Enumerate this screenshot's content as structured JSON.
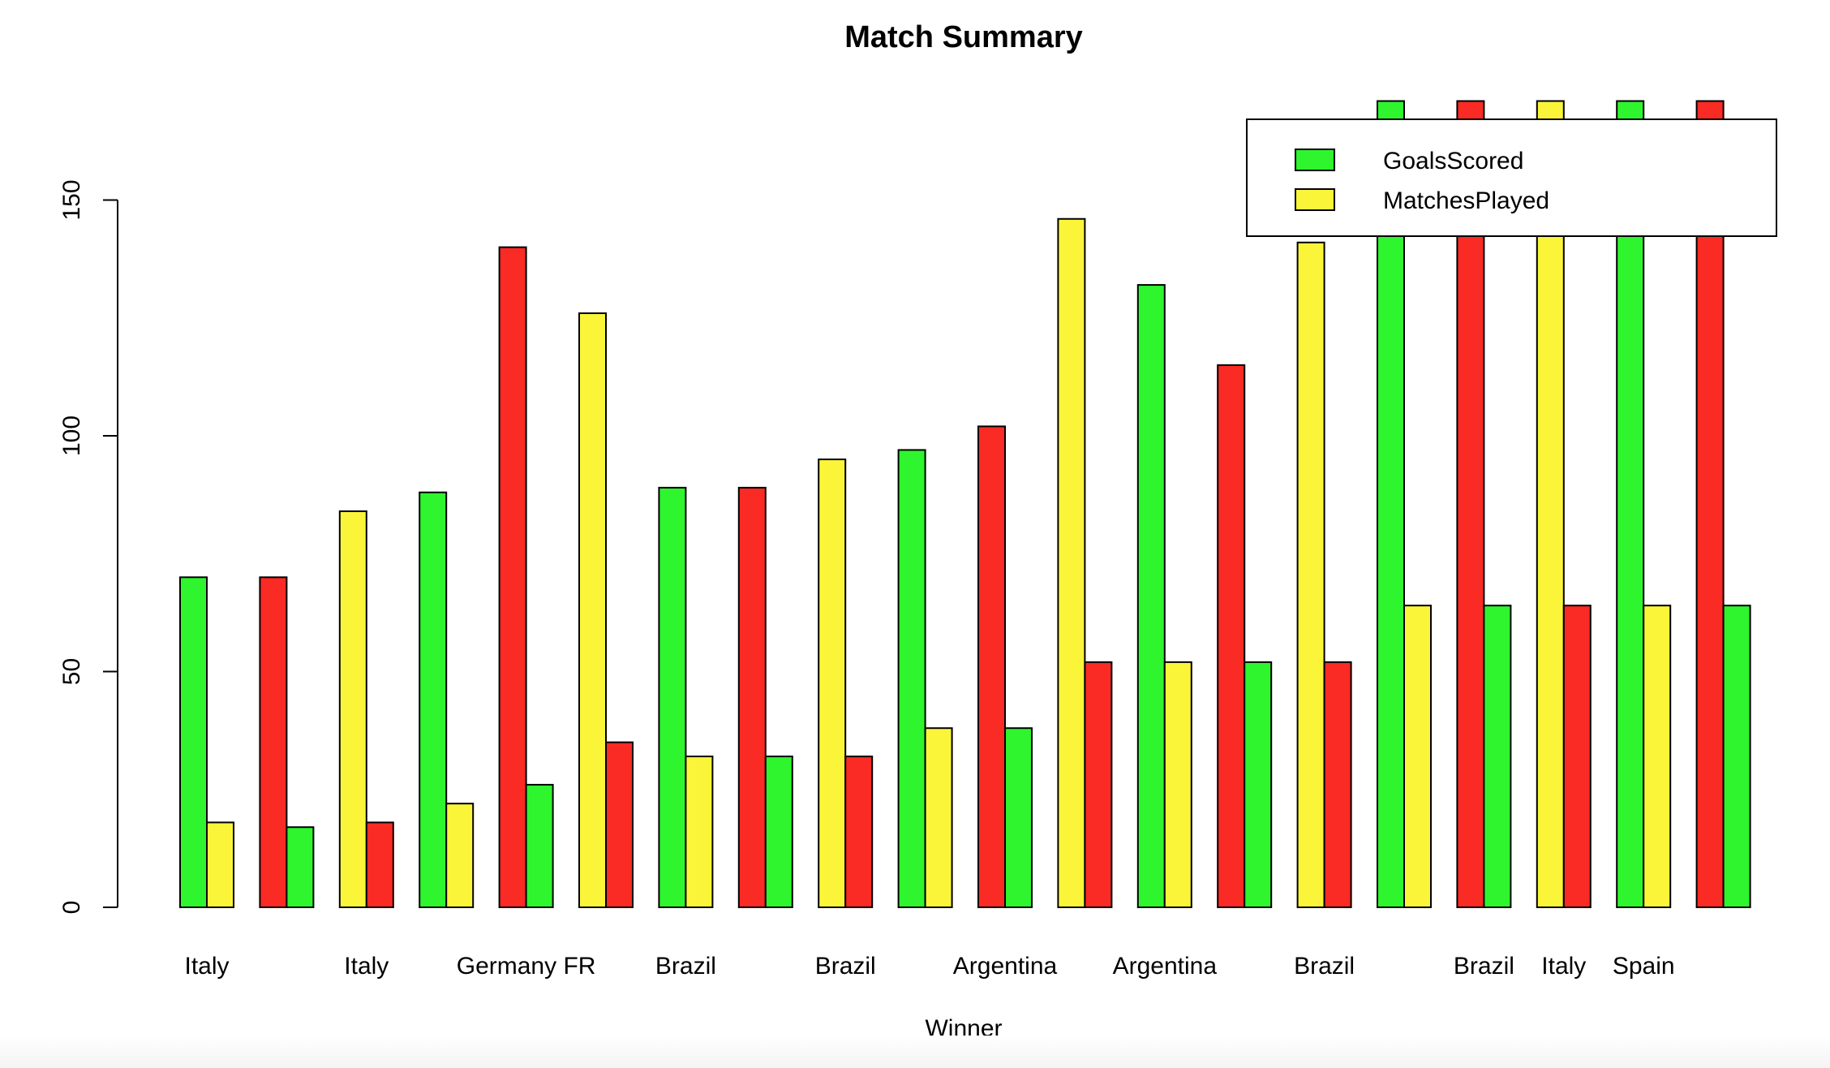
{
  "chart_data": {
    "type": "bar",
    "title": "Match Summary",
    "xlabel": "Winner",
    "ylabel": "",
    "ylim": [
      0,
      150
    ],
    "yticks": [
      0,
      50,
      100,
      150
    ],
    "grid": false,
    "legend_position": "top-right",
    "legend": [
      {
        "label": "GoalsScored",
        "color": "#2ef52e"
      },
      {
        "label": "MatchesPlayed",
        "color": "#fbf53a"
      }
    ],
    "group_size": 2,
    "bar_values": [
      70,
      18,
      70,
      17,
      84,
      18,
      88,
      22,
      140,
      26,
      126,
      35,
      89,
      32,
      89,
      32,
      95,
      32,
      97,
      38,
      102,
      38,
      146,
      52,
      132,
      52,
      115,
      52,
      141,
      52,
      171,
      64,
      171,
      64,
      171,
      64,
      171,
      64,
      171,
      64
    ],
    "bar_colors": [
      "green",
      "yellow",
      "red",
      "green",
      "yellow",
      "red",
      "green",
      "yellow",
      "red",
      "green",
      "yellow",
      "red",
      "green",
      "yellow",
      "red",
      "green",
      "yellow",
      "red",
      "green",
      "yellow",
      "red",
      "green",
      "yellow",
      "red",
      "green",
      "yellow",
      "red",
      "green",
      "yellow",
      "red",
      "green",
      "yellow",
      "red",
      "green",
      "yellow",
      "red",
      "green",
      "yellow",
      "red",
      "green"
    ],
    "palette": {
      "green": "#2ef52e",
      "yellow": "#fbf53a",
      "red": "#fa2a24"
    },
    "category_labels": [
      {
        "label": "Italy",
        "group": 0
      },
      {
        "label": "Italy",
        "group": 2
      },
      {
        "label": "Germany FR",
        "group": 4
      },
      {
        "label": "Brazil",
        "group": 6
      },
      {
        "label": "Brazil",
        "group": 8
      },
      {
        "label": "Argentina",
        "group": 10
      },
      {
        "label": "Argentina",
        "group": 12
      },
      {
        "label": "Brazil",
        "group": 14
      },
      {
        "label": "Brazil",
        "group": 16
      },
      {
        "label": "Italy",
        "group": 17
      },
      {
        "label": "Spain",
        "group": 18
      }
    ]
  }
}
